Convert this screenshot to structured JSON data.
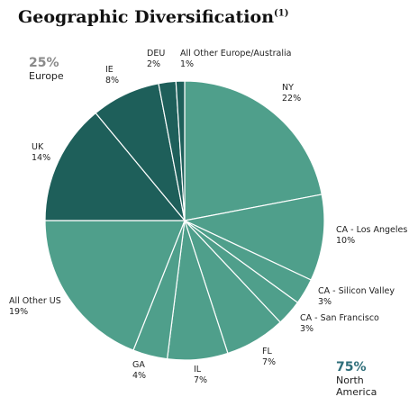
{
  "chart_data": {
    "type": "pie",
    "title": "Geographic Diversification",
    "title_note": "(1)",
    "categories": [
      "NY",
      "CA - Los Angeles",
      "CA - Silicon Valley",
      "CA - San Francisco",
      "FL",
      "IL",
      "GA",
      "All Other US",
      "UK",
      "IE",
      "DEU",
      "All Other Europe/Australia"
    ],
    "values": [
      22,
      10,
      3,
      3,
      7,
      7,
      4,
      19,
      14,
      8,
      2,
      1
    ],
    "value_labels": [
      "22%",
      "10%",
      "3%",
      "3%",
      "7%",
      "7%",
      "4%",
      "19%",
      "14%",
      "8%",
      "2%",
      "1%"
    ],
    "colors": [
      "#4f9f8b",
      "#4f9f8b",
      "#4f9f8b",
      "#4f9f8b",
      "#4f9f8b",
      "#4f9f8b",
      "#4f9f8b",
      "#4f9f8b",
      "#1e5f5a",
      "#1e5f5a",
      "#1e5f5a",
      "#1e5f5a"
    ],
    "annotations": [
      {
        "value": "25%",
        "label": "Europe",
        "color": "#8a8a8a"
      },
      {
        "value": "75%",
        "label": "North America",
        "color": "#2e6e7a"
      }
    ]
  }
}
